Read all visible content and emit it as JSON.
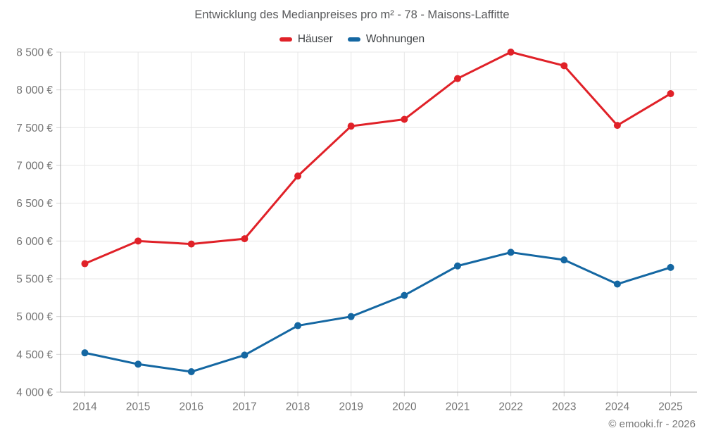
{
  "header": {
    "title": "Entwicklung des Medianpreises pro m² - 78 - Maisons-Laffitte"
  },
  "footer": {
    "copyright": "© emooki.fr - 2026"
  },
  "chart_data": {
    "type": "line",
    "title": "Entwicklung des Medianpreises pro m² - 78 - Maisons-Laffitte",
    "x": [
      2014,
      2015,
      2016,
      2017,
      2018,
      2019,
      2020,
      2021,
      2022,
      2023,
      2024,
      2025
    ],
    "series": [
      {
        "name": "Häuser",
        "color": "#e02128",
        "values": [
          5700,
          6000,
          5960,
          6030,
          6860,
          7520,
          7610,
          8150,
          8500,
          8320,
          7530,
          7950
        ]
      },
      {
        "name": "Wohnungen",
        "color": "#1467a2",
        "values": [
          4520,
          4370,
          4270,
          4490,
          4880,
          5000,
          5280,
          5670,
          5850,
          5750,
          5430,
          5650
        ]
      }
    ],
    "ylim": [
      4000,
      8500
    ],
    "ytick_step": 500,
    "ytick_suffix": " €",
    "grid": true,
    "legend_position": "top",
    "axis_label_color": "#757575",
    "gridline_color": "#e7e7e7",
    "axis_line_color": "#ababab",
    "tick_color": "#d2d2d2"
  }
}
